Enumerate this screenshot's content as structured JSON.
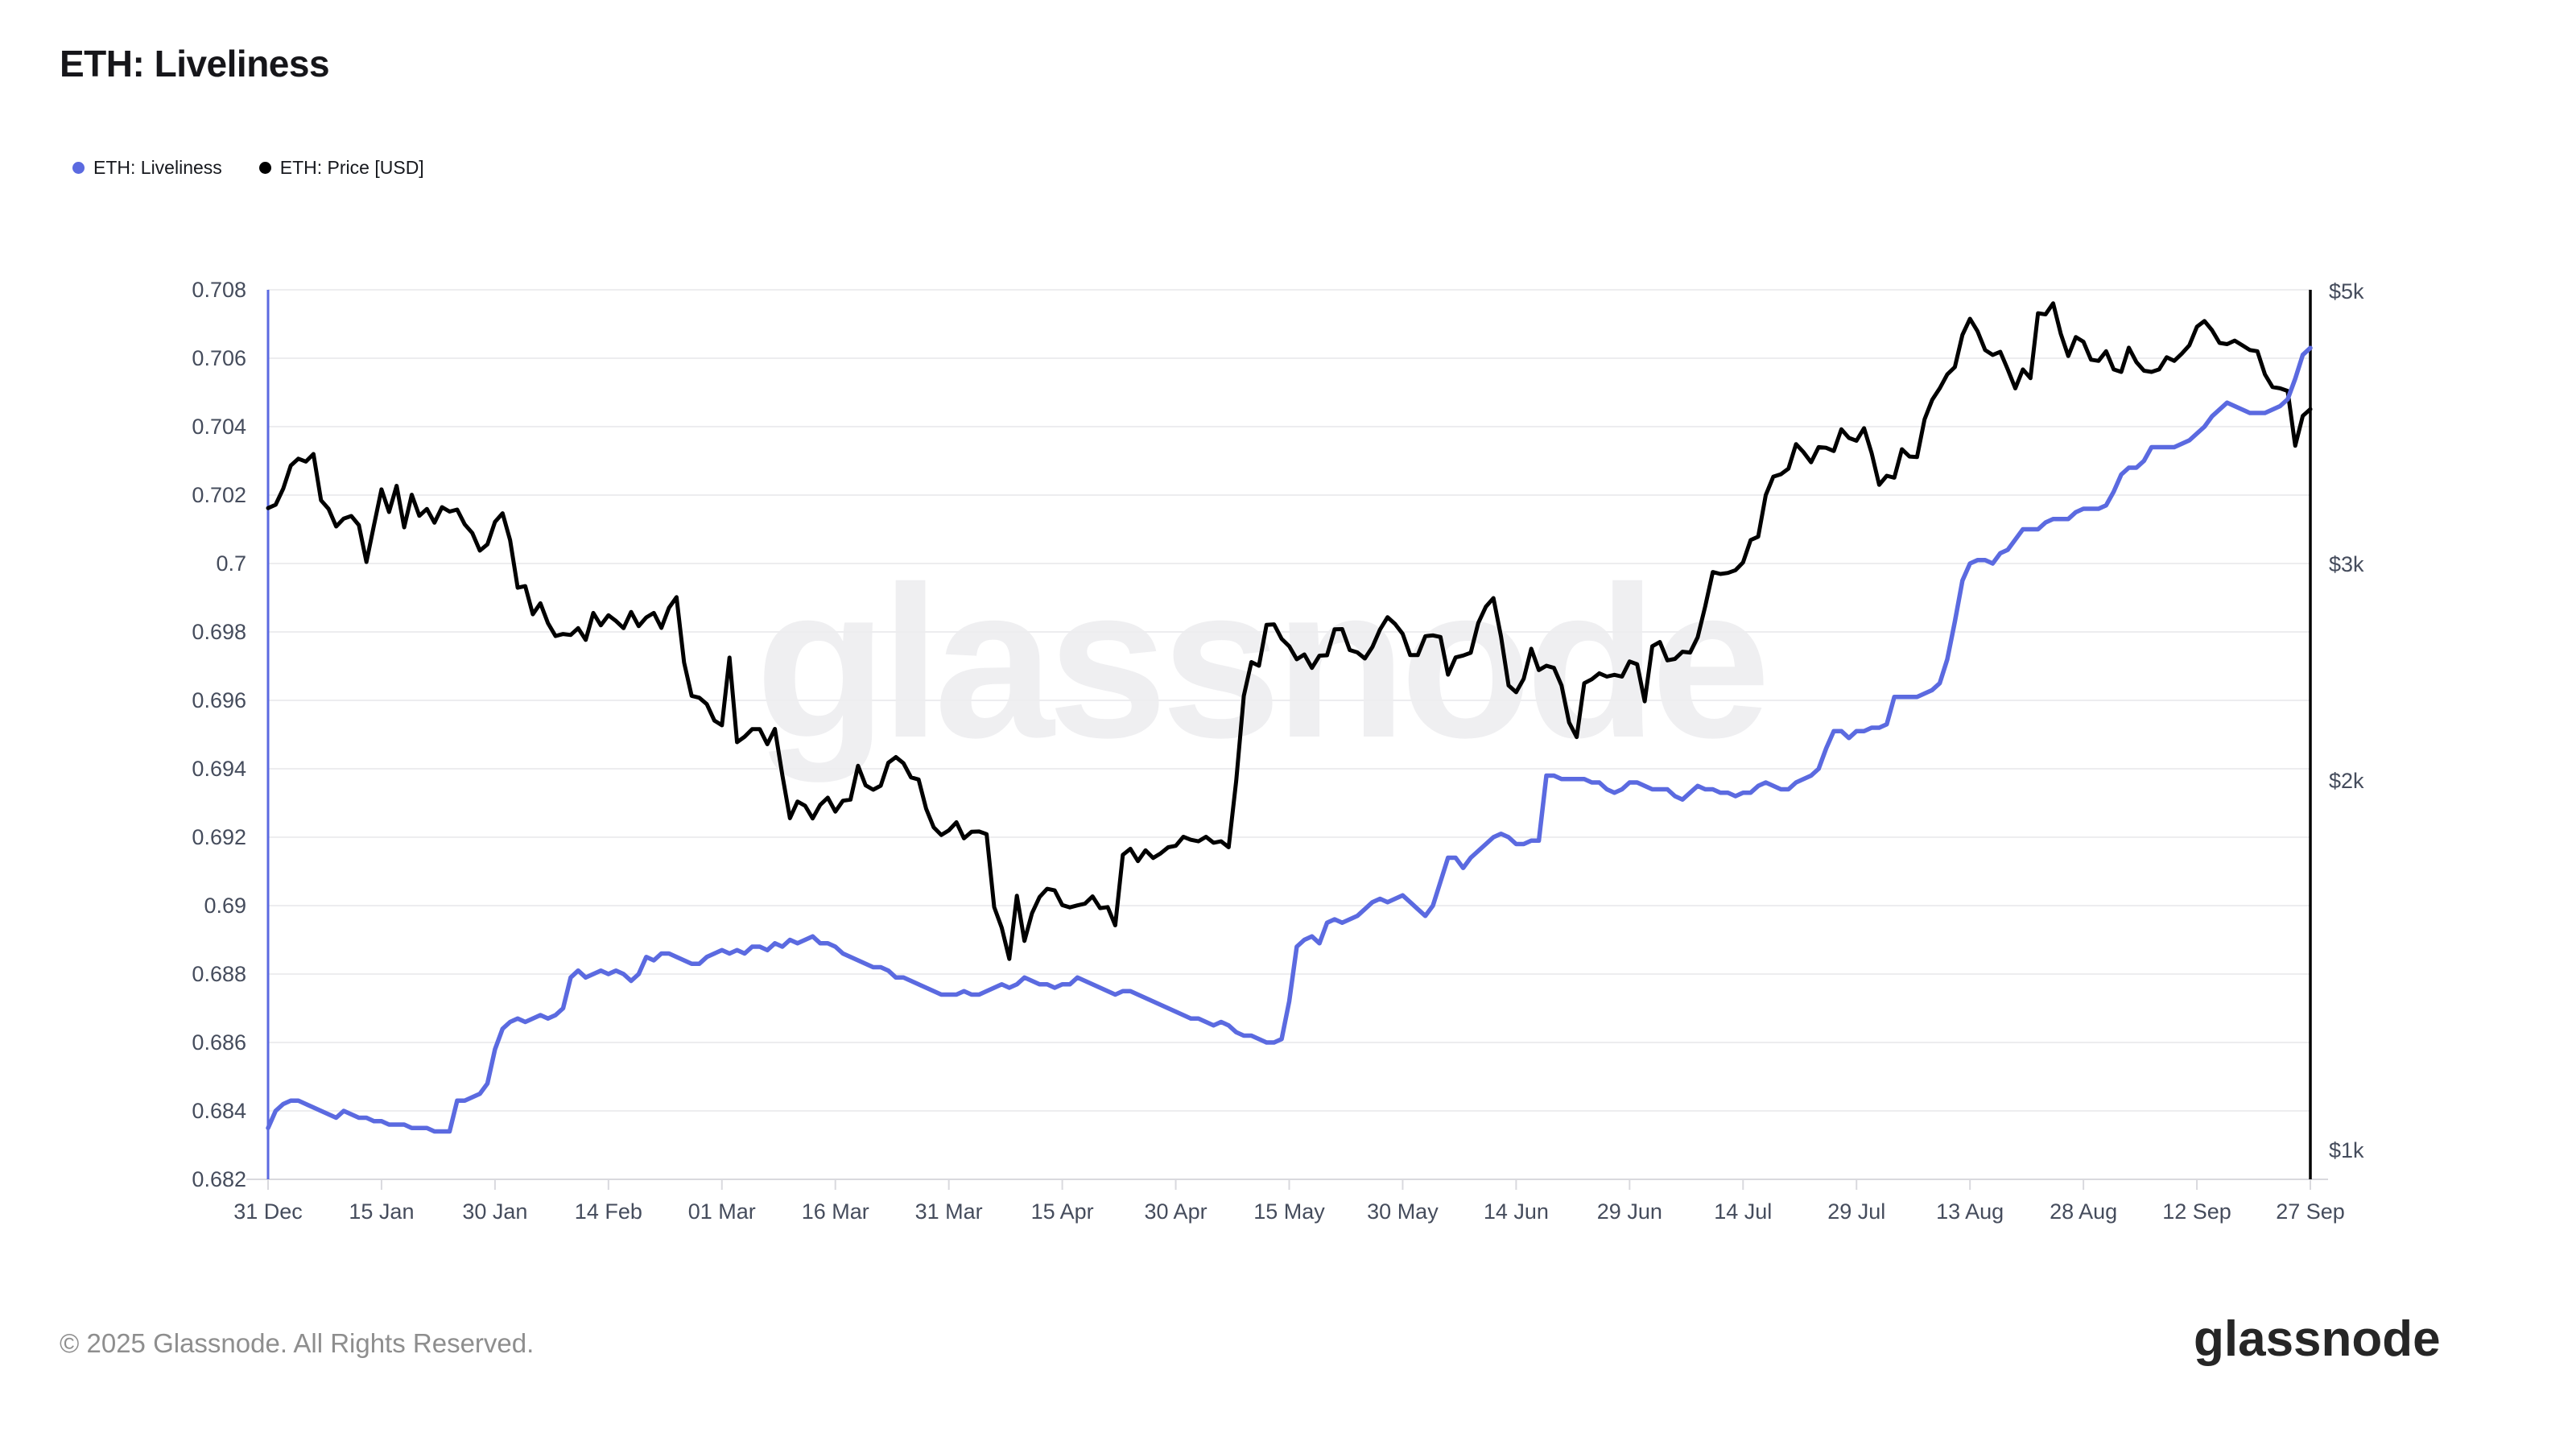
{
  "page": {
    "title": "ETH: Liveliness",
    "footer": "© 2025 Glassnode. All Rights Reserved.",
    "logo_text": "glassnode",
    "watermark": "glassnode",
    "background": "#ffffff"
  },
  "legend": {
    "items": [
      {
        "label": "ETH: Liveliness",
        "color": "#5b6ae0"
      },
      {
        "label": "ETH: Price [USD]",
        "color": "#000000"
      }
    ]
  },
  "colors": {
    "liveliness_line": "#5b6ae0",
    "price_line": "#000000",
    "grid": "#ededef",
    "axis_baseline": "#d9d9de",
    "axis_text": "#454c5c"
  },
  "chart_data": {
    "type": "line",
    "title": "ETH: Liveliness",
    "x_max_day": 270,
    "x_tick_days": [
      0,
      15,
      30,
      45,
      60,
      75,
      90,
      105,
      120,
      135,
      150,
      165,
      180,
      195,
      210,
      225,
      240,
      255,
      270
    ],
    "x_tick_labels": [
      "31 Dec",
      "15 Jan",
      "30 Jan",
      "14 Feb",
      "01 Mar",
      "16 Mar",
      "31 Mar",
      "15 Apr",
      "30 Apr",
      "15 May",
      "30 May",
      "14 Jun",
      "29 Jun",
      "14 Jul",
      "29 Jul",
      "13 Aug",
      "28 Aug",
      "12 Sep",
      "27 Sep"
    ],
    "left_axis": {
      "name": "ETH: Liveliness",
      "scale": "linear",
      "min": 0.682,
      "max": 0.708,
      "tick_values": [
        0.708,
        0.706,
        0.704,
        0.702,
        0.7,
        0.698,
        0.696,
        0.694,
        0.692,
        0.69,
        0.688,
        0.686,
        0.684,
        0.682
      ],
      "tick_labels": [
        "0.708",
        "0.706",
        "0.704",
        "0.702",
        "0.7",
        "0.698",
        "0.696",
        "0.694",
        "0.692",
        "0.69",
        "0.688",
        "0.686",
        "0.684",
        "0.682"
      ],
      "axis_color": "#5b6ae0"
    },
    "right_axis": {
      "name": "ETH: Price [USD]",
      "scale": "log",
      "tick_values": [
        5000,
        3000,
        2000,
        1000
      ],
      "tick_labels": [
        "$5k",
        "$3k",
        "$2k",
        "$1k"
      ],
      "axis_color": "#000000"
    },
    "grid": "horizontal-only",
    "legend_position": "top-left",
    "series": [
      {
        "name": "ETH: Liveliness",
        "axis": "left",
        "color": "#5b6ae0",
        "stroke_width": 5.5,
        "values": [
          0.6835,
          0.684,
          0.6842,
          0.6843,
          0.6843,
          0.6842,
          0.6841,
          0.684,
          0.6839,
          0.6838,
          0.684,
          0.6839,
          0.6838,
          0.6838,
          0.6837,
          0.6837,
          0.6836,
          0.6836,
          0.6836,
          0.6835,
          0.6835,
          0.6835,
          0.6834,
          0.6834,
          0.6834,
          0.6843,
          0.6843,
          0.6844,
          0.6845,
          0.6848,
          0.6858,
          0.6864,
          0.6866,
          0.6867,
          0.6866,
          0.6867,
          0.6868,
          0.6867,
          0.6868,
          0.687,
          0.6879,
          0.6881,
          0.6879,
          0.688,
          0.6881,
          0.688,
          0.6881,
          0.688,
          0.6878,
          0.688,
          0.6885,
          0.6884,
          0.6886,
          0.6886,
          0.6885,
          0.6884,
          0.6883,
          0.6883,
          0.6885,
          0.6886,
          0.6887,
          0.6886,
          0.6887,
          0.6886,
          0.6888,
          0.6888,
          0.6887,
          0.6889,
          0.6888,
          0.689,
          0.6889,
          0.689,
          0.6891,
          0.6889,
          0.6889,
          0.6888,
          0.6886,
          0.6885,
          0.6884,
          0.6883,
          0.6882,
          0.6882,
          0.6881,
          0.6879,
          0.6879,
          0.6878,
          0.6877,
          0.6876,
          0.6875,
          0.6874,
          0.6874,
          0.6874,
          0.6875,
          0.6874,
          0.6874,
          0.6875,
          0.6876,
          0.6877,
          0.6876,
          0.6877,
          0.6879,
          0.6878,
          0.6877,
          0.6877,
          0.6876,
          0.6877,
          0.6877,
          0.6879,
          0.6878,
          0.6877,
          0.6876,
          0.6875,
          0.6874,
          0.6875,
          0.6875,
          0.6874,
          0.6873,
          0.6872,
          0.6871,
          0.687,
          0.6869,
          0.6868,
          0.6867,
          0.6867,
          0.6866,
          0.6865,
          0.6866,
          0.6865,
          0.6863,
          0.6862,
          0.6862,
          0.6861,
          0.686,
          0.686,
          0.6861,
          0.6872,
          0.6888,
          0.689,
          0.6891,
          0.6889,
          0.6895,
          0.6896,
          0.6895,
          0.6896,
          0.6897,
          0.6899,
          0.6901,
          0.6902,
          0.6901,
          0.6902,
          0.6903,
          0.6901,
          0.6899,
          0.6897,
          0.69,
          0.6907,
          0.6914,
          0.6914,
          0.6911,
          0.6914,
          0.6916,
          0.6918,
          0.692,
          0.6921,
          0.692,
          0.6918,
          0.6918,
          0.6919,
          0.6919,
          0.6938,
          0.6938,
          0.6937,
          0.6937,
          0.6937,
          0.6937,
          0.6936,
          0.6936,
          0.6934,
          0.6933,
          0.6934,
          0.6936,
          0.6936,
          0.6935,
          0.6934,
          0.6934,
          0.6934,
          0.6932,
          0.6931,
          0.6933,
          0.6935,
          0.6934,
          0.6934,
          0.6933,
          0.6933,
          0.6932,
          0.6933,
          0.6933,
          0.6935,
          0.6936,
          0.6935,
          0.6934,
          0.6934,
          0.6936,
          0.6937,
          0.6938,
          0.694,
          0.6946,
          0.6951,
          0.6951,
          0.6949,
          0.6951,
          0.6951,
          0.6952,
          0.6952,
          0.6953,
          0.6961,
          0.6961,
          0.6961,
          0.6961,
          0.6962,
          0.6963,
          0.6965,
          0.6972,
          0.6983,
          0.6995,
          0.7,
          0.7001,
          0.7001,
          0.7,
          0.7003,
          0.7004,
          0.7007,
          0.701,
          0.701,
          0.701,
          0.7012,
          0.7013,
          0.7013,
          0.7013,
          0.7015,
          0.7016,
          0.7016,
          0.7016,
          0.7017,
          0.7021,
          0.7026,
          0.7028,
          0.7028,
          0.703,
          0.7034,
          0.7034,
          0.7034,
          0.7034,
          0.7035,
          0.7036,
          0.7038,
          0.704,
          0.7043,
          0.7045,
          0.7047,
          0.7046,
          0.7045,
          0.7044,
          0.7044,
          0.7044,
          0.7045,
          0.7046,
          0.7048,
          0.7054,
          0.7061,
          0.7063
        ]
      },
      {
        "name": "ETH: Price [USD]",
        "axis": "right",
        "color": "#000000",
        "stroke_width": 5,
        "values": [
          3332,
          3353,
          3455,
          3608,
          3655,
          3635,
          3687,
          3381,
          3327,
          3219,
          3267,
          3283,
          3227,
          3012,
          3225,
          3451,
          3308,
          3474,
          3214,
          3416,
          3284,
          3327,
          3242,
          3338,
          3310,
          3323,
          3232,
          3180,
          3077,
          3113,
          3247,
          3300,
          3137,
          2870,
          2879,
          2731,
          2788,
          2686,
          2622,
          2632,
          2627,
          2661,
          2603,
          2738,
          2675,
          2726,
          2697,
          2661,
          2743,
          2671,
          2715,
          2738,
          2662,
          2764,
          2820,
          2495,
          2344,
          2336,
          2308,
          2238,
          2218,
          2518,
          2149,
          2171,
          2202,
          2202,
          2141,
          2203,
          2020,
          1864,
          1923,
          1908,
          1863,
          1911,
          1937,
          1887,
          1926,
          1930,
          2056,
          1982,
          1966,
          1981,
          2068,
          2090,
          2066,
          2012,
          2004,
          1897,
          1832,
          1806,
          1822,
          1850,
          1795,
          1817,
          1818,
          1809,
          1578,
          1518,
          1432,
          1612,
          1481,
          1560,
          1608,
          1633,
          1628,
          1584,
          1577,
          1583,
          1588,
          1610,
          1575,
          1578,
          1525,
          1740,
          1760,
          1720,
          1755,
          1730,
          1745,
          1765,
          1770,
          1800,
          1790,
          1785,
          1800,
          1780,
          1785,
          1765,
          2000,
          2344,
          2497,
          2480,
          2677,
          2680,
          2608,
          2572,
          2510,
          2533,
          2470,
          2527,
          2529,
          2655,
          2656,
          2554,
          2543,
          2514,
          2569,
          2654,
          2716,
          2682,
          2633,
          2530,
          2530,
          2621,
          2625,
          2617,
          2439,
          2519,
          2528,
          2541,
          2687,
          2770,
          2815,
          2620,
          2390,
          2360,
          2420,
          2560,
          2460,
          2480,
          2470,
          2390,
          2230,
          2170,
          2400,
          2418,
          2445,
          2430,
          2438,
          2430,
          2500,
          2487,
          2320,
          2572,
          2593,
          2505,
          2512,
          2546,
          2542,
          2616,
          2772,
          2956,
          2945,
          2951,
          2966,
          3010,
          3138,
          3158,
          3414,
          3534,
          3550,
          3588,
          3756,
          3700,
          3630,
          3735,
          3730,
          3708,
          3862,
          3800,
          3780,
          3870,
          3694,
          3480,
          3540,
          3527,
          3720,
          3670,
          3666,
          3935,
          4080,
          4170,
          4280,
          4339,
          4609,
          4750,
          4640,
          4480,
          4439,
          4465,
          4320,
          4170,
          4320,
          4250,
          4800,
          4790,
          4890,
          4620,
          4430,
          4590,
          4550,
          4400,
          4390,
          4470,
          4320,
          4300,
          4500,
          4380,
          4310,
          4300,
          4320,
          4420,
          4390,
          4450,
          4520,
          4680,
          4730,
          4650,
          4540,
          4530,
          4560,
          4520,
          4480,
          4470,
          4280,
          4180,
          4170,
          4150,
          3745,
          3960,
          4010
        ]
      }
    ]
  }
}
